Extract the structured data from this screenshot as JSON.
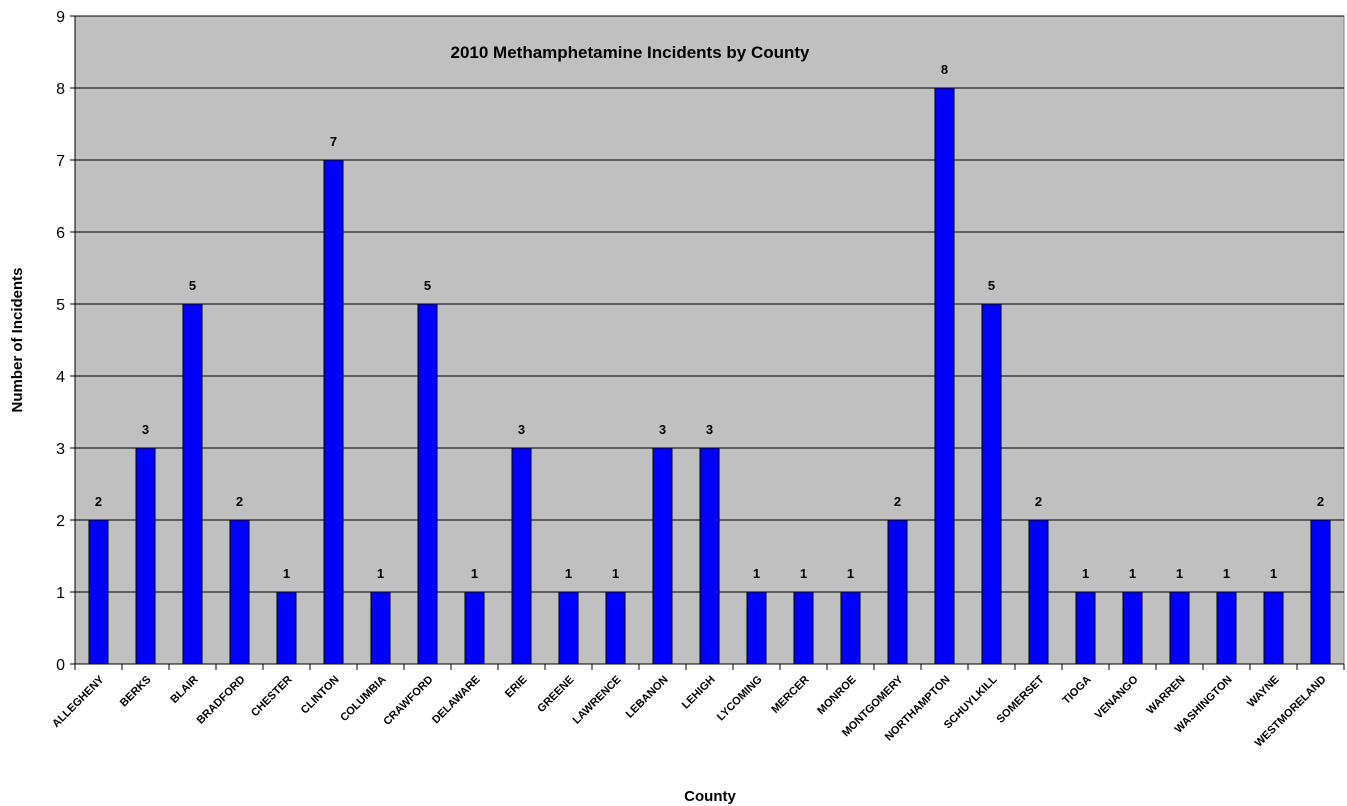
{
  "colors": {
    "plot_bg": "#c0c0c0",
    "bar": "#0000ff",
    "bar_stroke": "#000000",
    "grid": "#000000"
  },
  "chart_data": {
    "type": "bar",
    "title": "2010 Methamphetamine Incidents by County",
    "xlabel": "County",
    "ylabel": "Number of Incidents",
    "ylim": [
      0,
      9
    ],
    "yticks": [
      0,
      1,
      2,
      3,
      4,
      5,
      6,
      7,
      8,
      9
    ],
    "grid": true,
    "categories": [
      "ALLEGHENY",
      "BERKS",
      "BLAIR",
      "BRADFORD",
      "CHESTER",
      "CLINTON",
      "COLUMBIA",
      "CRAWFORD",
      "DELAWARE",
      "ERIE",
      "GREENE",
      "LAWRENCE",
      "LEBANON",
      "LEHIGH",
      "LYCOMING",
      "MERCER",
      "MONROE",
      "MONTGOMERY",
      "NORTHAMPTON",
      "SCHUYLKILL",
      "SOMERSET",
      "TIOGA",
      "VENANGO",
      "WARREN",
      "WASHINGTON",
      "WAYNE",
      "WESTMORELAND"
    ],
    "values": [
      2,
      3,
      5,
      2,
      1,
      7,
      1,
      5,
      1,
      3,
      1,
      1,
      3,
      3,
      1,
      1,
      1,
      2,
      8,
      5,
      2,
      1,
      1,
      1,
      1,
      1,
      2
    ]
  }
}
